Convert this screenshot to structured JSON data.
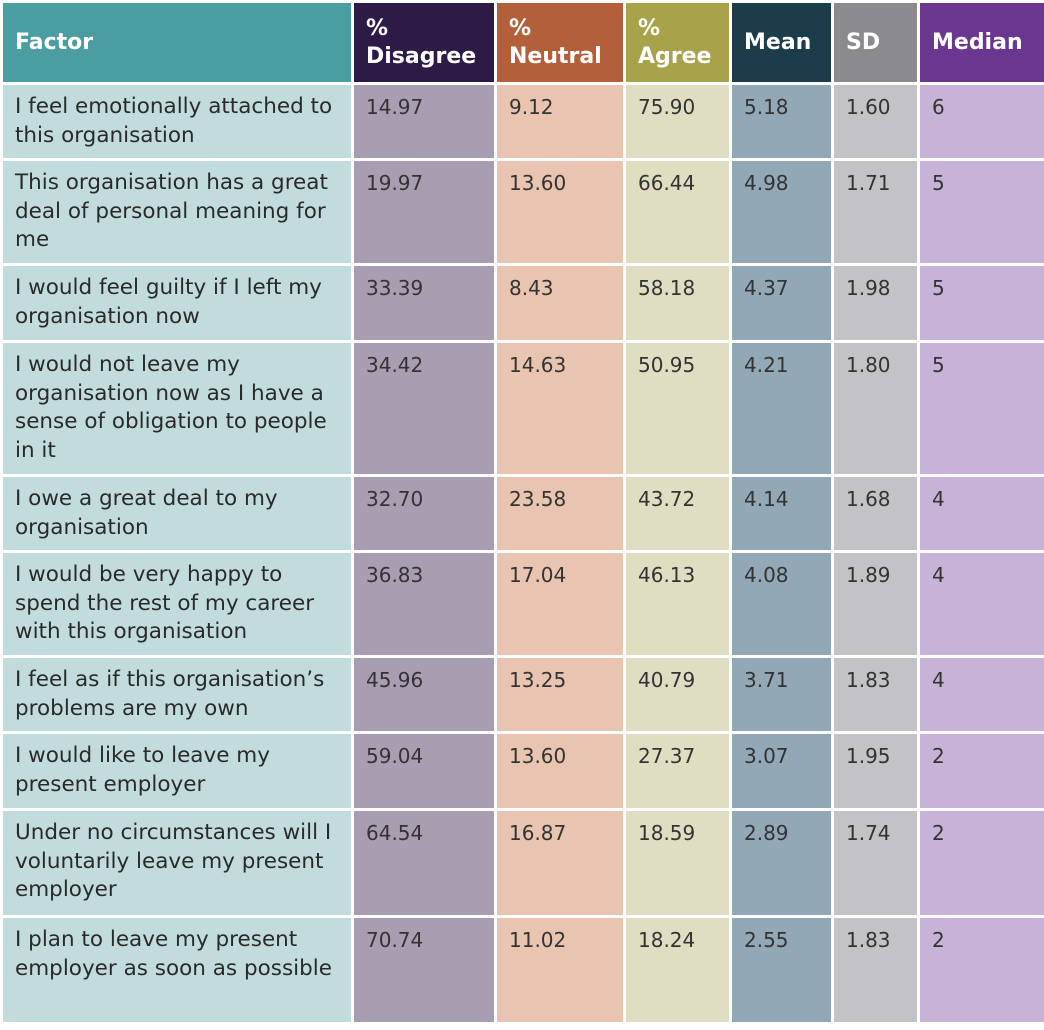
{
  "table": {
    "header": [
      "Factor",
      "%\nDisagree",
      "%\nNeutral",
      "%\nAgree",
      "Mean",
      "SD",
      "Median"
    ],
    "rows": [
      [
        "I feel emotionally attached to this organisation",
        "14.97",
        "9.12",
        "75.90",
        "5.18",
        "1.60",
        "6"
      ],
      [
        "This organisation has a great deal of personal meaning for me",
        "19.97",
        "13.60",
        "66.44",
        "4.98",
        "1.71",
        "5"
      ],
      [
        "I would feel guilty if I left my organisation now",
        "33.39",
        "8.43",
        "58.18",
        "4.37",
        "1.98",
        "5"
      ],
      [
        "I would not leave my organisation now as I have a sense of obligation to people in it",
        "34.42",
        "14.63",
        "50.95",
        "4.21",
        "1.80",
        "5"
      ],
      [
        "I owe a great deal to my organisation",
        "32.70",
        "23.58",
        "43.72",
        "4.14",
        "1.68",
        "4"
      ],
      [
        "I would be very happy to spend the rest of my career with this organisation",
        "36.83",
        "17.04",
        "46.13",
        "4.08",
        "1.89",
        "4"
      ],
      [
        "I feel as if this organisation’s problems are my own",
        "45.96",
        "13.25",
        "40.79",
        "3.71",
        "1.83",
        "4"
      ],
      [
        "I would like to leave my present employer",
        "59.04",
        "13.60",
        "27.37",
        "3.07",
        "1.95",
        "2"
      ],
      [
        "Under no circumstances will I voluntarily leave my present employer",
        "64.54",
        "16.87",
        "18.59",
        "2.89",
        "1.74",
        "2"
      ],
      [
        "I plan to leave my present employer as soon as possible",
        "70.74",
        "11.02",
        "18.24",
        "2.55",
        "1.83",
        "2"
      ]
    ]
  }
}
